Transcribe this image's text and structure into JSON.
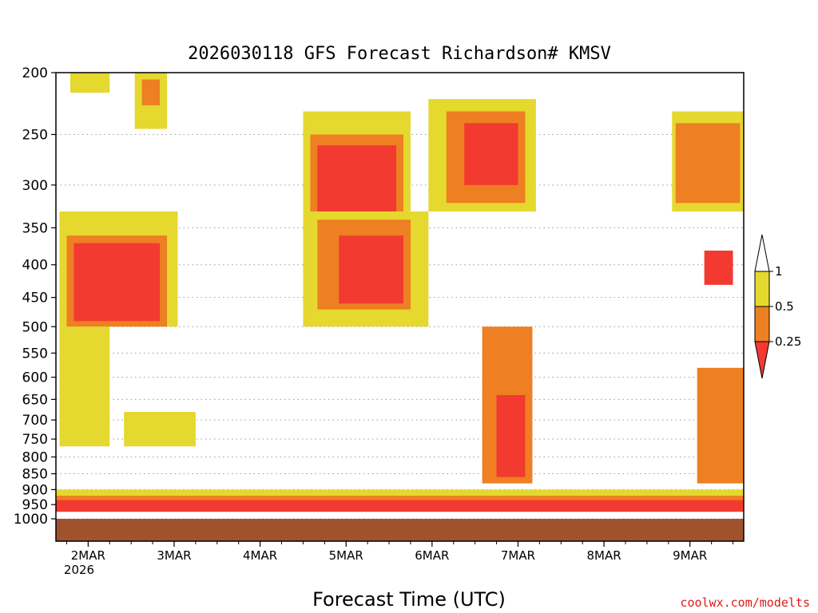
{
  "chart_data": {
    "type": "heatmap",
    "title": "2026030118 GFS Forecast Richardson# KMSV",
    "xlabel": "Forecast Time (UTC)",
    "ylabel": "",
    "credit": "coolwx.com/modelts",
    "y_axis": {
      "scale": "log-pressure",
      "range": [
        1000,
        200
      ],
      "ticks": [
        200,
        250,
        300,
        350,
        400,
        450,
        500,
        550,
        600,
        650,
        700,
        750,
        800,
        850,
        900,
        950,
        1000
      ],
      "tick_labels": [
        "200",
        "250",
        "300",
        "350",
        "400",
        "450",
        "500",
        "550",
        "600",
        "650",
        "700",
        "750",
        "800",
        "850",
        "900",
        "950",
        "1000"
      ]
    },
    "x_axis": {
      "range_hours": [
        -9,
        183
      ],
      "tick_hours": [
        0,
        24,
        48,
        72,
        96,
        120,
        144,
        168
      ],
      "tick_labels": [
        "2MAR",
        "3MAR",
        "4MAR",
        "5MAR",
        "6MAR",
        "7MAR",
        "8MAR",
        "9MAR"
      ],
      "sub_label": "2026"
    },
    "grid": "dotted horizontal lines at pressure levels",
    "legend": {
      "placement": "right",
      "labels": [
        "1",
        "0.5",
        "0.25"
      ],
      "bins": [
        {
          "range": ">= 1",
          "color": "#ffffff"
        },
        {
          "range": "0.5 - 1",
          "color": "#e5d82e"
        },
        {
          "range": "0.25 - 0.5",
          "color": "#ee7f22"
        },
        {
          "range": "< 0.25",
          "color": "#f23a30"
        }
      ]
    },
    "ground_color": "#a0522d",
    "regions": [
      {
        "bin": "0.5 - 1",
        "t": [
          -5,
          6
        ],
        "p": [
          200,
          215
        ]
      },
      {
        "bin": "0.5 - 1",
        "t": [
          13,
          22
        ],
        "p": [
          200,
          245
        ]
      },
      {
        "bin": "0.25 - 0.5",
        "t": [
          15,
          20
        ],
        "p": [
          205,
          225
        ]
      },
      {
        "bin": "0.5 - 1",
        "t": [
          60,
          90
        ],
        "p": [
          230,
          330
        ]
      },
      {
        "bin": "0.25 - 0.5",
        "t": [
          62,
          88
        ],
        "p": [
          250,
          350
        ]
      },
      {
        "bin": "< 0.25",
        "t": [
          64,
          86
        ],
        "p": [
          260,
          340
        ]
      },
      {
        "bin": "0.5 - 1",
        "t": [
          95,
          125
        ],
        "p": [
          220,
          330
        ]
      },
      {
        "bin": "0.25 - 0.5",
        "t": [
          100,
          122
        ],
        "p": [
          230,
          320
        ]
      },
      {
        "bin": "< 0.25",
        "t": [
          105,
          120
        ],
        "p": [
          240,
          300
        ]
      },
      {
        "bin": "0.5 - 1",
        "t": [
          -8,
          25
        ],
        "p": [
          330,
          500
        ]
      },
      {
        "bin": "0.25 - 0.5",
        "t": [
          -6,
          22
        ],
        "p": [
          360,
          500
        ]
      },
      {
        "bin": "< 0.25",
        "t": [
          -4,
          20
        ],
        "p": [
          370,
          490
        ]
      },
      {
        "bin": "0.5 - 1",
        "t": [
          60,
          95
        ],
        "p": [
          330,
          500
        ]
      },
      {
        "bin": "0.25 - 0.5",
        "t": [
          64,
          90
        ],
        "p": [
          340,
          470
        ]
      },
      {
        "bin": "< 0.25",
        "t": [
          70,
          88
        ],
        "p": [
          360,
          460
        ]
      },
      {
        "bin": "0.5 - 1",
        "t": [
          -8,
          6
        ],
        "p": [
          500,
          770
        ]
      },
      {
        "bin": "0.5 - 1",
        "t": [
          10,
          30
        ],
        "p": [
          680,
          770
        ]
      },
      {
        "bin": "0.25 - 0.5",
        "t": [
          110,
          124
        ],
        "p": [
          500,
          880
        ]
      },
      {
        "bin": "< 0.25",
        "t": [
          114,
          122
        ],
        "p": [
          640,
          860
        ]
      },
      {
        "bin": "0.5 - 1",
        "t": [
          163,
          183
        ],
        "p": [
          230,
          330
        ]
      },
      {
        "bin": "0.25 - 0.5",
        "t": [
          164,
          182
        ],
        "p": [
          240,
          320
        ]
      },
      {
        "bin": "0.25 - 0.5",
        "t": [
          170,
          183
        ],
        "p": [
          580,
          880
        ]
      },
      {
        "bin": "< 0.25",
        "t": [
          172,
          180
        ],
        "p": [
          380,
          430
        ]
      },
      {
        "bin": "0.5 - 1",
        "t": [
          -9,
          183
        ],
        "p": [
          900,
          960
        ]
      },
      {
        "bin": "0.25 - 0.5",
        "t": [
          -9,
          183
        ],
        "p": [
          920,
          965
        ]
      },
      {
        "bin": "< 0.25",
        "t": [
          -9,
          183
        ],
        "p": [
          935,
          975
        ]
      }
    ]
  }
}
